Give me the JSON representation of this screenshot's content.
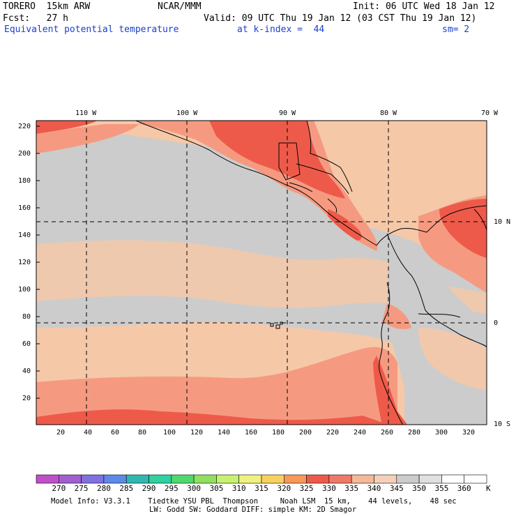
{
  "header": {
    "model": "TORERO  15km ARW",
    "org": "NCAR/MMM",
    "init": "Init: 06 UTC Wed 18 Jan 12",
    "fcst": "Fcst:   27 h",
    "valid": "Valid: 09 UTC Thu 19 Jan 12 (03 CST Thu 19 Jan 12)",
    "field": "Equivalent potential temperature",
    "level": "at k-index =  44",
    "smooth": "sm= 2"
  },
  "map": {
    "top_lon_labels": [
      "110 W",
      "100 W",
      "90 W",
      "80 W",
      "70 W"
    ],
    "right_lat_labels": [
      "10 N",
      "0",
      "10 S"
    ],
    "left_ticks": [
      "220",
      "200",
      "180",
      "160",
      "140",
      "120",
      "100",
      "80",
      "60",
      "40",
      "20"
    ],
    "bottom_ticks": [
      "20",
      "40",
      "60",
      "80",
      "100",
      "120",
      "140",
      "160",
      "180",
      "200",
      "220",
      "240",
      "260",
      "280",
      "300",
      "320"
    ],
    "grid": "dashed",
    "colors": {
      "c340": "#f5c8a8",
      "c345": "#cccccc",
      "c335": "#f59a80",
      "c330": "#ee5a4a",
      "c325": "#f07858",
      "land_line": "#000000"
    }
  },
  "colorbar": {
    "labels": [
      "270",
      "275",
      "280",
      "285",
      "290",
      "295",
      "300",
      "305",
      "310",
      "315",
      "320",
      "325",
      "330",
      "335",
      "340",
      "345",
      "350",
      "355",
      "360"
    ],
    "unit": "K",
    "colors": [
      "#c050c8",
      "#a060d0",
      "#8070e0",
      "#6088e8",
      "#30b8b0",
      "#30d0a0",
      "#50d870",
      "#90e060",
      "#c8f070",
      "#f0f080",
      "#f8d060",
      "#f89858",
      "#ee5a4a",
      "#f07868",
      "#f5b898",
      "#f5d0b8",
      "#cccccc",
      "#e0e0e0",
      "#ffffff",
      "#ffffff"
    ]
  },
  "footer": {
    "line1": "Model Info: V3.3.1    Tiedtke YSU PBL  Thompson     Noah LSM  15 km,    44 levels,    48 sec",
    "line2": "LW: Godd SW: Goddard DIFF: simple KM: 2D Smagor"
  }
}
